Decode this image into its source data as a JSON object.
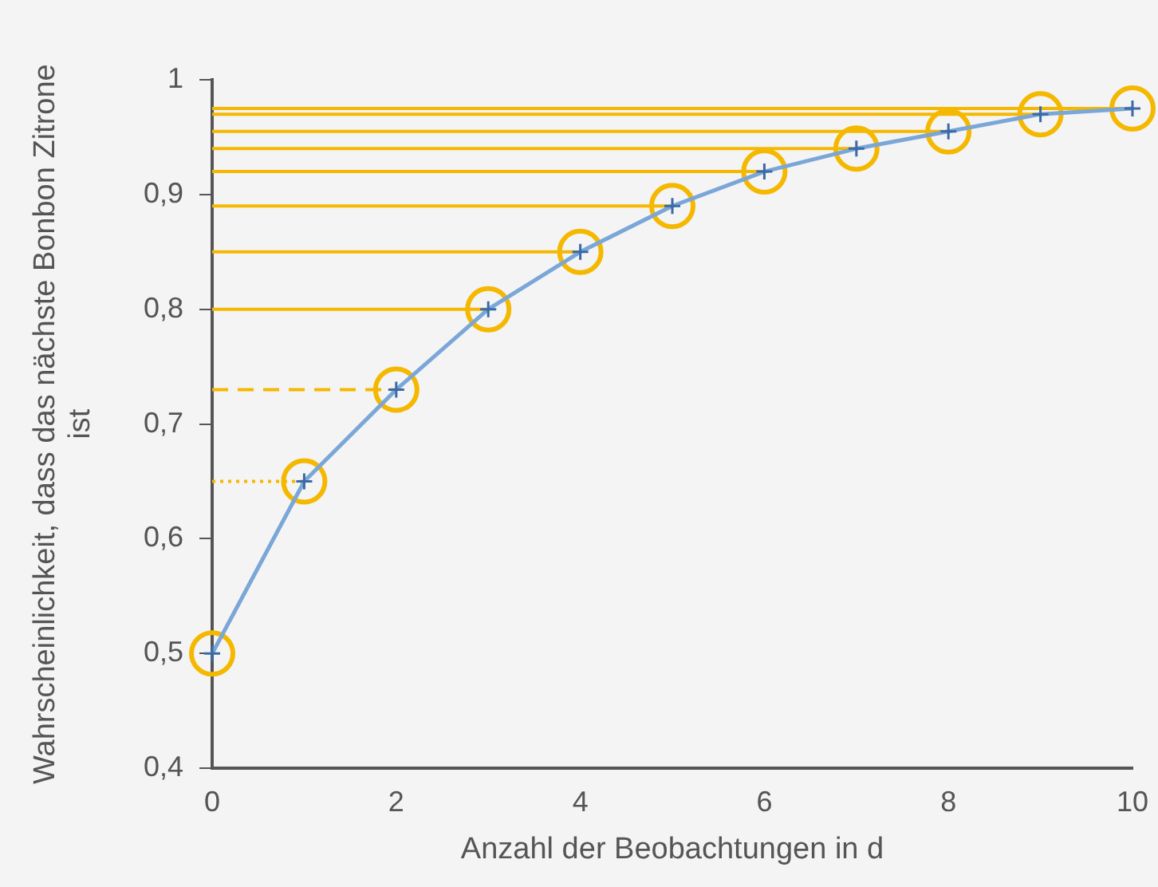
{
  "chart_data": {
    "type": "line",
    "xlabel": "Anzahl der Beobachtungen in d",
    "ylabel": "Wahrscheinlichkeit, dass das nächste Bonbon Zitrone ist",
    "x": [
      0,
      1,
      2,
      3,
      4,
      5,
      6,
      7,
      8,
      9,
      10
    ],
    "series": [
      {
        "type": "line",
        "color": "#7aa6d8",
        "marker": "cross",
        "values": [
          0.5,
          0.65,
          0.73,
          0.8,
          0.85,
          0.89,
          0.92,
          0.94,
          0.955,
          0.97,
          0.975
        ]
      },
      {
        "type": "scatter",
        "color": "#f5b800",
        "marker": "circle",
        "values": [
          0.5,
          0.65,
          0.73,
          0.8,
          0.85,
          0.89,
          0.92,
          0.94,
          0.955,
          0.97,
          0.975
        ]
      }
    ],
    "ref_lines": [
      {
        "axis": "y",
        "value": 0.65,
        "color": "#f5b800",
        "line_style": "dotted"
      },
      {
        "axis": "y",
        "value": 0.73,
        "color": "#f5b800",
        "line_style": "dashed"
      },
      {
        "axis": "y",
        "value": 0.8,
        "color": "#f5b800",
        "line_style": "solid"
      },
      {
        "axis": "y",
        "value": 0.85,
        "color": "#f5b800",
        "line_style": "solid"
      },
      {
        "axis": "y",
        "value": 0.89,
        "color": "#f5b800",
        "line_style": "solid"
      },
      {
        "axis": "y",
        "value": 0.92,
        "color": "#f5b800",
        "line_style": "solid"
      },
      {
        "axis": "y",
        "value": 0.94,
        "color": "#f5b800",
        "line_style": "solid"
      },
      {
        "axis": "y",
        "value": 0.955,
        "color": "#f5b800",
        "line_style": "solid"
      },
      {
        "axis": "y",
        "value": 0.97,
        "color": "#f5b800",
        "line_style": "solid"
      },
      {
        "axis": "y",
        "value": 0.975,
        "color": "#f5b800",
        "line_style": "solid"
      }
    ],
    "xlim": [
      0,
      10
    ],
    "xticks": [
      0,
      2,
      4,
      6,
      8,
      10
    ],
    "ylim": [
      0.4,
      1
    ],
    "yticks": [
      {
        "value": 0.4,
        "label": "0,4"
      },
      {
        "value": 0.5,
        "label": "0,5"
      },
      {
        "value": 0.6,
        "label": "0,6"
      },
      {
        "value": 0.7,
        "label": "0,7"
      },
      {
        "value": 0.8,
        "label": "0,8"
      },
      {
        "value": 0.9,
        "label": "0,9"
      },
      1
    ],
    "grid": false,
    "legend": false
  }
}
